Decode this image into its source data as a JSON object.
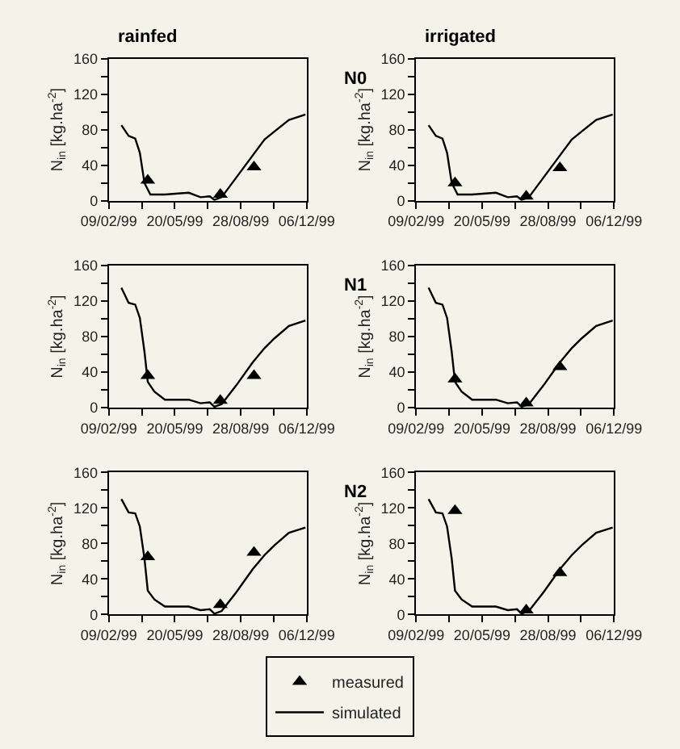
{
  "chart_data": [
    {
      "type": "line",
      "title": "rainfed",
      "ylabel": "N$_{in}$ [kg.ha$^{-2}$]",
      "xlim": [
        "1999-02-09",
        "1999-12-06"
      ],
      "ylim": [
        0,
        160
      ],
      "xticks": [
        {
          "value": "1999-02-09",
          "label": "09/02/99"
        },
        {
          "value": "1999-03-31",
          "label": null
        },
        {
          "value": "1999-05-20",
          "label": "20/05/99"
        },
        {
          "value": "1999-07-09",
          "label": null
        },
        {
          "value": "1999-08-28",
          "label": "28/08/99"
        },
        {
          "value": "1999-10-17",
          "label": null
        },
        {
          "value": "1999-12-06",
          "label": "06/12/99"
        }
      ],
      "yticks": [
        0,
        {
          "value": 20,
          "label": null
        },
        40,
        {
          "value": 60,
          "label": null
        },
        80,
        {
          "value": 100,
          "label": null
        },
        120,
        {
          "value": 140,
          "label": null
        },
        160
      ],
      "grid": false,
      "legend": "bottom",
      "series": [
        {
          "name": "measured",
          "type": "scatter",
          "marker": "triangle",
          "color": "#000000",
          "x": [
            "1999-04-09",
            "1999-07-28",
            "1999-09-17"
          ],
          "values": [
            23,
            7,
            38
          ]
        },
        {
          "name": "simulated",
          "marker": "none",
          "line_style": "solid",
          "color": "#000000",
          "x": [
            "1999-02-28",
            "1999-03-11",
            "1999-03-21",
            "1999-03-28",
            "1999-04-04",
            "1999-04-13",
            "1999-05-05",
            "1999-06-10",
            "1999-06-28",
            "1999-07-12",
            "1999-07-19",
            "1999-07-30",
            "1999-08-21",
            "1999-09-15",
            "1999-10-03",
            "1999-10-18",
            "1999-11-09",
            "1999-12-04"
          ],
          "values": [
            85,
            73,
            70,
            54,
            20,
            7,
            7,
            9,
            4,
            5,
            1,
            4,
            26,
            51,
            69,
            78,
            91,
            97
          ]
        }
      ]
    },
    {
      "type": "line",
      "title": "irrigated",
      "ylabel": "N$_{in}$ [kg.ha$^{-2}$]",
      "annotations": [
        "N0"
      ],
      "xlim": [
        "1999-02-09",
        "1999-12-06"
      ],
      "ylim": [
        0,
        160
      ],
      "xticks": [
        {
          "value": "1999-02-09",
          "label": "09/02/99"
        },
        {
          "value": "1999-03-31",
          "label": null
        },
        {
          "value": "1999-05-20",
          "label": "20/05/99"
        },
        {
          "value": "1999-07-09",
          "label": null
        },
        {
          "value": "1999-08-28",
          "label": "28/08/99"
        },
        {
          "value": "1999-10-17",
          "label": null
        },
        {
          "value": "1999-12-06",
          "label": "06/12/99"
        }
      ],
      "yticks": [
        0,
        {
          "value": 20,
          "label": null
        },
        40,
        {
          "value": 60,
          "label": null
        },
        80,
        {
          "value": 100,
          "label": null
        },
        120,
        {
          "value": 140,
          "label": null
        },
        160
      ],
      "grid": false,
      "series": [
        {
          "type": "scatter",
          "marker": "triangle",
          "color": "#000000",
          "x": [
            "1999-04-09",
            "1999-07-26",
            "1999-09-15"
          ],
          "values": [
            20,
            5,
            37
          ]
        },
        {
          "marker": "none",
          "line_style": "solid",
          "color": "#000000",
          "x": [
            "1999-02-28",
            "1999-03-11",
            "1999-03-21",
            "1999-03-28",
            "1999-04-04",
            "1999-04-13",
            "1999-05-05",
            "1999-06-10",
            "1999-06-28",
            "1999-07-12",
            "1999-07-19",
            "1999-07-30",
            "1999-08-21",
            "1999-09-15",
            "1999-10-03",
            "1999-10-18",
            "1999-11-09",
            "1999-12-04"
          ],
          "values": [
            85,
            73,
            70,
            54,
            20,
            7,
            7,
            9,
            4,
            5,
            1,
            4,
            26,
            51,
            69,
            78,
            91,
            97
          ]
        }
      ]
    },
    {
      "type": "line",
      "ylabel": "N$_{in}$ [kg.ha$^{-2}$]",
      "xlim": [
        "1999-02-09",
        "1999-12-06"
      ],
      "ylim": [
        0,
        160
      ],
      "xticks": [
        {
          "value": "1999-02-09",
          "label": "09/02/99"
        },
        {
          "value": "1999-03-31",
          "label": null
        },
        {
          "value": "1999-05-20",
          "label": "20/05/99"
        },
        {
          "value": "1999-07-09",
          "label": null
        },
        {
          "value": "1999-08-28",
          "label": "28/08/99"
        },
        {
          "value": "1999-10-17",
          "label": null
        },
        {
          "value": "1999-12-06",
          "label": "06/12/99"
        }
      ],
      "yticks": [
        0,
        {
          "value": 20,
          "label": null
        },
        40,
        {
          "value": 60,
          "label": null
        },
        80,
        {
          "value": 100,
          "label": null
        },
        120,
        {
          "value": 140,
          "label": null
        },
        160
      ],
      "grid": false,
      "series": [
        {
          "type": "scatter",
          "marker": "triangle",
          "color": "#000000",
          "x": [
            "1999-04-09",
            "1999-07-28",
            "1999-09-17"
          ],
          "values": [
            36,
            8,
            36
          ]
        },
        {
          "marker": "none",
          "line_style": "solid",
          "color": "#000000",
          "x": [
            "1999-02-28",
            "1999-03-11",
            "1999-03-21",
            "1999-03-28",
            "1999-04-04",
            "1999-04-09",
            "1999-04-19",
            "1999-05-05",
            "1999-06-10",
            "1999-06-28",
            "1999-07-12",
            "1999-07-19",
            "1999-07-30",
            "1999-08-21",
            "1999-09-15",
            "1999-10-03",
            "1999-10-18",
            "1999-11-09",
            "1999-12-04"
          ],
          "values": [
            135,
            118,
            116,
            101,
            63,
            29,
            18,
            9,
            9,
            5,
            6,
            1,
            4,
            25,
            51,
            67,
            78,
            92,
            98
          ]
        }
      ]
    },
    {
      "type": "line",
      "ylabel": "N$_{in}$ [kg.ha$^{-2}$]",
      "annotations": [
        "N1"
      ],
      "xlim": [
        "1999-02-09",
        "1999-12-06"
      ],
      "ylim": [
        0,
        160
      ],
      "xticks": [
        {
          "value": "1999-02-09",
          "label": "09/02/99"
        },
        {
          "value": "1999-03-31",
          "label": null
        },
        {
          "value": "1999-05-20",
          "label": "20/05/99"
        },
        {
          "value": "1999-07-09",
          "label": null
        },
        {
          "value": "1999-08-28",
          "label": "28/08/99"
        },
        {
          "value": "1999-10-17",
          "label": null
        },
        {
          "value": "1999-12-06",
          "label": "06/12/99"
        }
      ],
      "yticks": [
        0,
        {
          "value": 20,
          "label": null
        },
        40,
        {
          "value": 60,
          "label": null
        },
        80,
        {
          "value": 100,
          "label": null
        },
        120,
        {
          "value": 140,
          "label": null
        },
        160
      ],
      "grid": false,
      "series": [
        {
          "type": "scatter",
          "marker": "triangle",
          "color": "#000000",
          "x": [
            "1999-04-09",
            "1999-07-26",
            "1999-09-15"
          ],
          "values": [
            32,
            5,
            46
          ]
        },
        {
          "marker": "none",
          "line_style": "solid",
          "color": "#000000",
          "x": [
            "1999-02-28",
            "1999-03-11",
            "1999-03-21",
            "1999-03-28",
            "1999-04-04",
            "1999-04-09",
            "1999-04-19",
            "1999-05-05",
            "1999-06-10",
            "1999-06-28",
            "1999-07-12",
            "1999-07-19",
            "1999-07-30",
            "1999-08-21",
            "1999-09-15",
            "1999-10-03",
            "1999-10-18",
            "1999-11-09",
            "1999-12-04"
          ],
          "values": [
            135,
            118,
            116,
            101,
            63,
            29,
            18,
            9,
            9,
            5,
            6,
            1,
            4,
            25,
            51,
            67,
            78,
            92,
            98
          ]
        }
      ]
    },
    {
      "type": "line",
      "ylabel": "N$_{in}$ [kg.ha$^{-2}$]",
      "xlim": [
        "1999-02-09",
        "1999-12-06"
      ],
      "ylim": [
        0,
        160
      ],
      "xticks": [
        {
          "value": "1999-02-09",
          "label": "09/02/99"
        },
        {
          "value": "1999-03-31",
          "label": null
        },
        {
          "value": "1999-05-20",
          "label": "20/05/99"
        },
        {
          "value": "1999-07-09",
          "label": null
        },
        {
          "value": "1999-08-28",
          "label": "28/08/99"
        },
        {
          "value": "1999-10-17",
          "label": null
        },
        {
          "value": "1999-12-06",
          "label": "06/12/99"
        }
      ],
      "yticks": [
        0,
        {
          "value": 20,
          "label": null
        },
        40,
        {
          "value": 60,
          "label": null
        },
        80,
        {
          "value": 100,
          "label": null
        },
        120,
        {
          "value": 140,
          "label": null
        },
        160
      ],
      "grid": false,
      "series": [
        {
          "type": "scatter",
          "marker": "triangle",
          "color": "#000000",
          "x": [
            "1999-04-09",
            "1999-07-28",
            "1999-09-17"
          ],
          "values": [
            65,
            11,
            70
          ]
        },
        {
          "marker": "none",
          "line_style": "solid",
          "color": "#000000",
          "x": [
            "1999-02-28",
            "1999-03-11",
            "1999-03-21",
            "1999-03-28",
            "1999-04-04",
            "1999-04-09",
            "1999-04-19",
            "1999-05-05",
            "1999-06-10",
            "1999-06-28",
            "1999-07-12",
            "1999-07-19",
            "1999-07-30",
            "1999-08-21",
            "1999-09-15",
            "1999-10-03",
            "1999-10-18",
            "1999-11-09",
            "1999-12-04"
          ],
          "values": [
            130,
            115,
            114,
            99,
            63,
            27,
            17,
            9,
            9,
            5,
            6,
            1,
            4,
            25,
            51,
            67,
            78,
            92,
            98
          ]
        }
      ]
    },
    {
      "type": "line",
      "ylabel": "N$_{in}$ [kg.ha$^{-2}$]",
      "annotations": [
        "N2"
      ],
      "xlim": [
        "1999-02-09",
        "1999-12-06"
      ],
      "ylim": [
        0,
        160
      ],
      "xticks": [
        {
          "value": "1999-02-09",
          "label": "09/02/99"
        },
        {
          "value": "1999-03-31",
          "label": null
        },
        {
          "value": "1999-05-20",
          "label": "20/05/99"
        },
        {
          "value": "1999-07-09",
          "label": null
        },
        {
          "value": "1999-08-28",
          "label": "28/08/99"
        },
        {
          "value": "1999-10-17",
          "label": null
        },
        {
          "value": "1999-12-06",
          "label": "06/12/99"
        }
      ],
      "yticks": [
        0,
        {
          "value": 20,
          "label": null
        },
        40,
        {
          "value": 60,
          "label": null
        },
        80,
        {
          "value": 100,
          "label": null
        },
        120,
        {
          "value": 140,
          "label": null
        },
        160
      ],
      "grid": false,
      "series": [
        {
          "type": "scatter",
          "marker": "triangle",
          "color": "#000000",
          "x": [
            "1999-04-09",
            "1999-07-26",
            "1999-09-15"
          ],
          "values": [
            117,
            5,
            47
          ]
        },
        {
          "marker": "none",
          "line_style": "solid",
          "color": "#000000",
          "x": [
            "1999-02-28",
            "1999-03-11",
            "1999-03-21",
            "1999-03-28",
            "1999-04-04",
            "1999-04-09",
            "1999-04-19",
            "1999-05-05",
            "1999-06-10",
            "1999-06-28",
            "1999-07-12",
            "1999-07-19",
            "1999-07-30",
            "1999-08-21",
            "1999-09-15",
            "1999-10-03",
            "1999-10-18",
            "1999-11-09",
            "1999-12-04"
          ],
          "values": [
            130,
            115,
            114,
            99,
            63,
            27,
            17,
            9,
            9,
            5,
            6,
            1,
            4,
            25,
            51,
            67,
            78,
            92,
            98
          ]
        }
      ]
    }
  ]
}
